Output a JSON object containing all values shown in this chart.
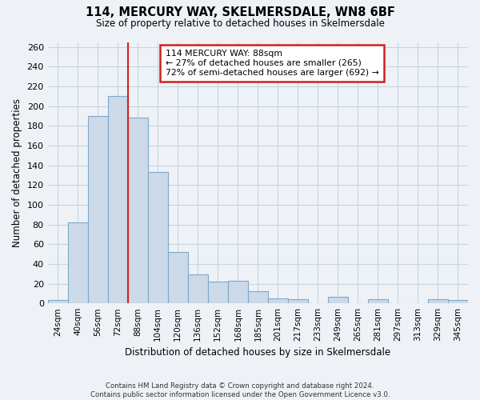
{
  "title": "114, MERCURY WAY, SKELMERSDALE, WN8 6BF",
  "subtitle": "Size of property relative to detached houses in Skelmersdale",
  "xlabel": "Distribution of detached houses by size in Skelmersdale",
  "ylabel": "Number of detached properties",
  "bin_labels": [
    "24sqm",
    "40sqm",
    "56sqm",
    "72sqm",
    "88sqm",
    "104sqm",
    "120sqm",
    "136sqm",
    "152sqm",
    "168sqm",
    "185sqm",
    "201sqm",
    "217sqm",
    "233sqm",
    "249sqm",
    "265sqm",
    "281sqm",
    "297sqm",
    "313sqm",
    "329sqm",
    "345sqm"
  ],
  "bar_heights": [
    3,
    82,
    190,
    210,
    188,
    133,
    52,
    29,
    22,
    23,
    12,
    5,
    4,
    0,
    7,
    0,
    4,
    0,
    0,
    4,
    3
  ],
  "bar_color": "#ccd9e8",
  "bar_edge_color": "#7fa8c8",
  "annotation_text": "114 MERCURY WAY: 88sqm\n← 27% of detached houses are smaller (265)\n72% of semi-detached houses are larger (692) →",
  "annotation_box_color": "white",
  "annotation_box_edge_color": "#cc2222",
  "vline_color": "#cc2222",
  "vline_index": 3.5,
  "ylim": [
    0,
    265
  ],
  "yticks": [
    0,
    20,
    40,
    60,
    80,
    100,
    120,
    140,
    160,
    180,
    200,
    220,
    240,
    260
  ],
  "footer_line1": "Contains HM Land Registry data © Crown copyright and database right 2024.",
  "footer_line2": "Contains public sector information licensed under the Open Government Licence v3.0.",
  "bg_color": "#eef2f7",
  "plot_bg_color": "#eef2f7",
  "grid_color": "#c8d4e0"
}
